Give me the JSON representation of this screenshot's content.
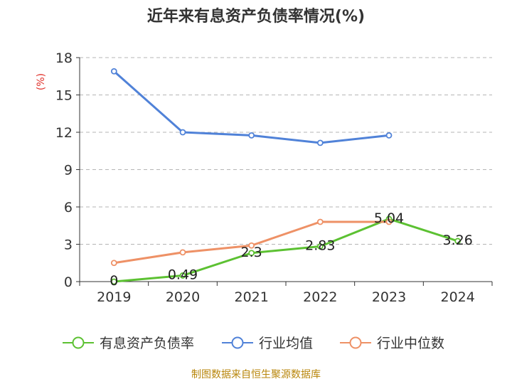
{
  "chart_data": {
    "type": "line",
    "title": "近年来有息资产负债率情况(%)",
    "y_unit": "(%)",
    "categories": [
      "2019",
      "2020",
      "2021",
      "2022",
      "2023",
      "2024"
    ],
    "ylim": [
      0,
      18
    ],
    "yticks": [
      0,
      3,
      6,
      9,
      12,
      15,
      18
    ],
    "grid": true,
    "legend_position": "bottom",
    "series": [
      {
        "name": "有息资产负债率",
        "color": "#5cc132",
        "values": [
          0,
          0.49,
          2.3,
          2.83,
          5.04,
          3.26
        ],
        "labels": [
          "0",
          "0.49",
          "2.3",
          "2.83",
          "5.04",
          "3.26"
        ]
      },
      {
        "name": "行业均值",
        "color": "#5082d8",
        "values": [
          16.9,
          12.0,
          11.75,
          11.15,
          11.75,
          null
        ]
      },
      {
        "name": "行业中位数",
        "color": "#ee9166",
        "values": [
          1.5,
          2.35,
          2.9,
          4.8,
          4.8,
          null
        ]
      }
    ],
    "source": "制图数据来自恒生聚源数据库"
  }
}
